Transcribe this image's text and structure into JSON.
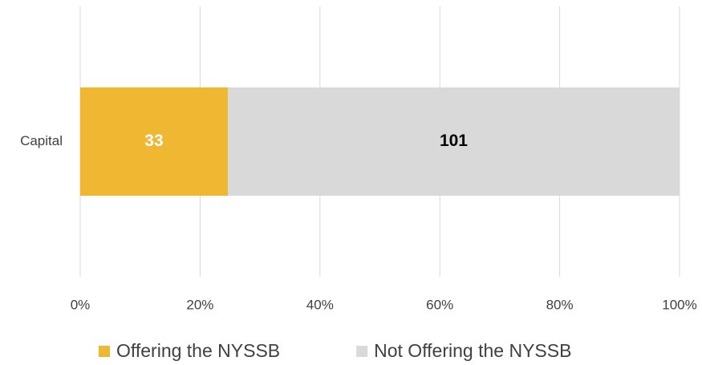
{
  "chart_data": {
    "type": "bar",
    "orientation": "horizontal",
    "stacking": "percent",
    "categories": [
      "Capital"
    ],
    "series": [
      {
        "name": "Offering the NYSSB",
        "color": "#f0b732",
        "label_color": "#ffffff",
        "values": [
          33
        ]
      },
      {
        "name": "Not Offering the NYSSB",
        "color": "#d9d9d9",
        "label_color": "#000000",
        "values": [
          101
        ]
      }
    ],
    "xlim": [
      0,
      100
    ],
    "xticks": [
      {
        "value": 0,
        "label": "0%"
      },
      {
        "value": 20,
        "label": "20%"
      },
      {
        "value": 40,
        "label": "40%"
      },
      {
        "value": 60,
        "label": "60%"
      },
      {
        "value": 80,
        "label": "80%"
      },
      {
        "value": 100,
        "label": "100%"
      }
    ],
    "grid": true,
    "legend": "bottom"
  }
}
